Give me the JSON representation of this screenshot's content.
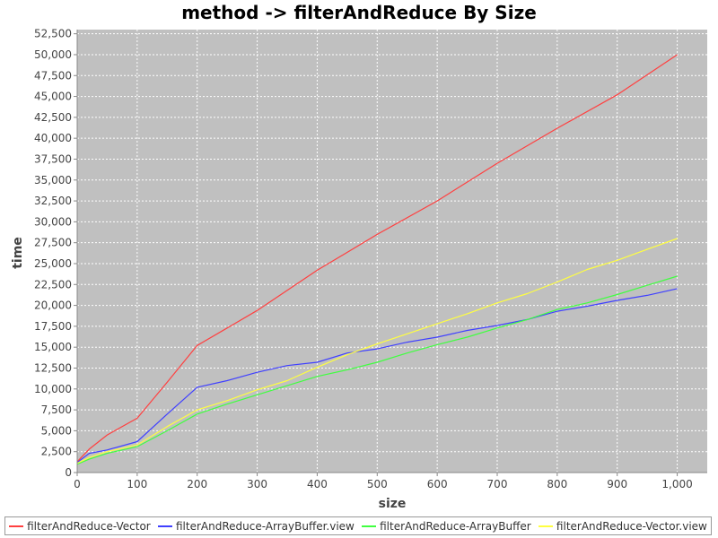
{
  "chart_data": {
    "type": "line",
    "title": "method -> filterAndReduce By Size",
    "xlabel": "size",
    "ylabel": "time",
    "xlim": [
      0,
      1050
    ],
    "ylim": [
      0,
      53000
    ],
    "x_ticks": [
      "0",
      "100",
      "200",
      "300",
      "400",
      "500",
      "600",
      "700",
      "800",
      "900",
      "1,000"
    ],
    "x_tick_values": [
      0,
      100,
      200,
      300,
      400,
      500,
      600,
      700,
      800,
      900,
      1000
    ],
    "y_ticks": [
      "0",
      "2,500",
      "5,000",
      "7,500",
      "10,000",
      "12,500",
      "15,000",
      "17,500",
      "20,000",
      "22,500",
      "25,000",
      "27,500",
      "30,000",
      "32,500",
      "35,000",
      "37,500",
      "40,000",
      "42,500",
      "45,000",
      "47,500",
      "50,000",
      "52,500"
    ],
    "y_tick_values": [
      0,
      2500,
      5000,
      7500,
      10000,
      12500,
      15000,
      17500,
      20000,
      22500,
      25000,
      27500,
      30000,
      32500,
      35000,
      37500,
      40000,
      42500,
      45000,
      47500,
      50000,
      52500
    ],
    "grid": true,
    "legend_position": "bottom",
    "plot_background": "#c0c0c0",
    "series": [
      {
        "name": "filterAndReduce-Vector",
        "color": "#ff4040",
        "x": [
          0,
          20,
          50,
          100,
          150,
          200,
          250,
          300,
          400,
          500,
          600,
          700,
          800,
          900,
          1000
        ],
        "y": [
          1300,
          2800,
          4500,
          6500,
          10800,
          15200,
          17300,
          19400,
          24200,
          28500,
          32500,
          37000,
          41200,
          45200,
          50000
        ]
      },
      {
        "name": "filterAndReduce-ArrayBuffer.view",
        "color": "#4040ff",
        "x": [
          0,
          20,
          50,
          100,
          150,
          200,
          250,
          300,
          350,
          400,
          450,
          500,
          550,
          600,
          650,
          700,
          750,
          800,
          850,
          900,
          950,
          1000
        ],
        "y": [
          1200,
          2300,
          2700,
          3700,
          7000,
          10200,
          11000,
          12000,
          12800,
          13200,
          14300,
          14800,
          15600,
          16200,
          17000,
          17600,
          18300,
          19300,
          19900,
          20600,
          21200,
          22000
        ]
      },
      {
        "name": "filterAndReduce-ArrayBuffer",
        "color": "#40ff40",
        "x": [
          0,
          20,
          50,
          100,
          150,
          200,
          250,
          300,
          350,
          400,
          450,
          500,
          550,
          600,
          650,
          700,
          750,
          800,
          850,
          900,
          950,
          1000
        ],
        "y": [
          1000,
          1600,
          2300,
          3100,
          5000,
          7000,
          8200,
          9300,
          10400,
          11500,
          12300,
          13200,
          14300,
          15300,
          16200,
          17300,
          18300,
          19500,
          20300,
          21300,
          22400,
          23500
        ]
      },
      {
        "name": "filterAndReduce-Vector.view",
        "color": "#ffff40",
        "x": [
          0,
          20,
          50,
          100,
          150,
          200,
          250,
          300,
          350,
          400,
          450,
          500,
          550,
          600,
          650,
          700,
          750,
          800,
          850,
          900,
          950,
          1000
        ],
        "y": [
          1100,
          1800,
          2500,
          3300,
          5500,
          7500,
          8600,
          9900,
          11000,
          12600,
          14100,
          15400,
          16600,
          17800,
          19000,
          20300,
          21400,
          22800,
          24300,
          25400,
          26700,
          28000
        ]
      }
    ]
  }
}
